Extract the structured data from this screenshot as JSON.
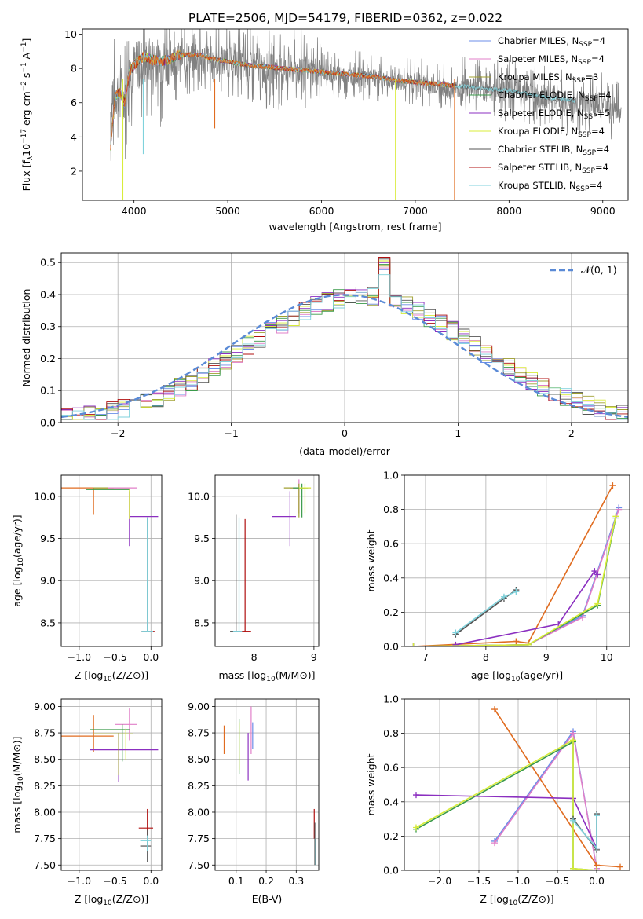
{
  "figure": {
    "title": "PLATE=2506, MJD=54179, FIBERID=0362, z=0.022"
  },
  "colors": {
    "Chabrier MILES": "#6b8ee8",
    "Salpeter MILES": "#e07fc8",
    "Kroupa MILES": "#a0a030",
    "Chabrier ELODIE": "#3a9a4a",
    "Salpeter ELODIE": "#8b2fc0",
    "Kroupa ELODIE": "#d8ec3a",
    "Chabrier STELIB": "#555555",
    "Salpeter STELIB": "#b01010",
    "Kroupa STELIB": "#7fd2dc",
    "orange": "#e06c20",
    "gauss": "#5a8ad6",
    "grid": "#b0b0b0"
  },
  "chart_data": [
    {
      "id": "spectrum",
      "type": "line",
      "title": "PLATE=2506, MJD=54179, FIBERID=0362, z=0.022",
      "xlabel": "wavelength [Angstrom, rest frame]",
      "ylabel": "Flux [fλ10⁻¹⁷ erg cm⁻² s⁻¹ A⁻¹]",
      "xlim": [
        3450,
        9270
      ],
      "ylim": [
        0.3,
        10.3
      ],
      "xticks": [
        4000,
        5000,
        6000,
        7000,
        8000,
        9000
      ],
      "yticks": [
        2,
        4,
        6,
        8,
        10
      ],
      "grid": false,
      "legend_loc": "upper right",
      "legend": [
        {
          "name": "Chabrier MILES",
          "label": "Chabrier MILES, N",
          "sub": "SSP",
          "tail": "=4"
        },
        {
          "name": "Salpeter MILES",
          "label": "Salpeter MILES, N",
          "sub": "SSP",
          "tail": "=4"
        },
        {
          "name": "Kroupa MILES",
          "label": "Kroupa MILES, N",
          "sub": "SSP",
          "tail": "=3"
        },
        {
          "name": "Chabrier ELODIE",
          "label": "Chabrier ELODIE, N",
          "sub": "SSP",
          "tail": "=4"
        },
        {
          "name": "Salpeter ELODIE",
          "label": "Salpeter ELODIE, N",
          "sub": "SSP",
          "tail": "=5"
        },
        {
          "name": "Kroupa ELODIE",
          "label": "Kroupa ELODIE, N",
          "sub": "SSP",
          "tail": "=4"
        },
        {
          "name": "Chabrier STELIB",
          "label": "Chabrier STELIB, N",
          "sub": "SSP",
          "tail": "=4"
        },
        {
          "name": "Salpeter STELIB",
          "label": "Salpeter STELIB, N",
          "sub": "SSP",
          "tail": "=4"
        },
        {
          "name": "Kroupa STELIB",
          "label": "Kroupa STELIB, N",
          "sub": "SSP",
          "tail": "=4"
        }
      ],
      "data_wavelength": [
        3750,
        3800,
        3850,
        3900,
        3950,
        4000,
        4100,
        4200,
        4300,
        4400,
        4500,
        4600,
        4700,
        4800,
        4900,
        5000,
        5200,
        5400,
        5600,
        5800,
        6000,
        6200,
        6400,
        6600,
        6800,
        7000,
        7200,
        7400,
        7600,
        7800,
        8000,
        8200,
        8400,
        8600,
        8800,
        9000,
        9200
      ],
      "data_flux": [
        5.5,
        6.4,
        7.0,
        6.2,
        7.6,
        8.1,
        8.4,
        8.4,
        8.3,
        8.5,
        8.5,
        8.6,
        8.6,
        8.5,
        8.4,
        8.4,
        8.1,
        8.0,
        7.9,
        7.9,
        7.8,
        7.6,
        7.6,
        7.4,
        7.2,
        7.3,
        7.0,
        6.8,
        6.9,
        6.8,
        6.8,
        6.6,
        6.3,
        6.1,
        5.9,
        5.9,
        5.5
      ],
      "data_noise": 1.5,
      "model_flux": [
        3.5,
        6.4,
        6.6,
        6.0,
        7.8,
        8.2,
        8.7,
        8.5,
        8.4,
        8.6,
        8.8,
        8.8,
        8.8,
        8.6,
        8.5,
        8.4,
        8.2,
        8.1,
        8.0,
        7.9,
        7.8,
        7.7,
        7.6,
        7.5,
        7.3,
        7.2,
        7.1,
        7.0,
        6.9,
        6.8,
        6.7,
        6.5,
        6.3,
        6.2,
        6.0,
        5.8,
        5.5
      ],
      "model_x_range": [
        3750,
        7430
      ],
      "dips": [
        {
          "x": 4860,
          "to": 4.5,
          "color": "orange"
        },
        {
          "x": 3880,
          "to": 0.3,
          "color": "Kroupa ELODIE"
        },
        {
          "x": 6790,
          "to": 0.3,
          "color": "Kroupa ELODIE"
        },
        {
          "x": 7420,
          "to": 0.3,
          "color": "orange"
        },
        {
          "x": 4100,
          "to": 3.0,
          "color": "Kroupa STELIB"
        }
      ]
    },
    {
      "id": "residuals",
      "type": "histogram",
      "xlabel": "(data-model)/error",
      "ylabel": "Normed distribution",
      "xlim": [
        -2.5,
        2.5
      ],
      "ylim": [
        0,
        0.53
      ],
      "xticks": [
        -2,
        -1,
        0,
        1,
        2
      ],
      "yticks": [
        0.0,
        0.1,
        0.2,
        0.3,
        0.4,
        0.5
      ],
      "grid": true,
      "legend_loc": "upper right",
      "gauss_label": "N(0,1)",
      "bin_width": 0.1,
      "series_names": [
        "Chabrier MILES",
        "Salpeter MILES",
        "Kroupa MILES",
        "Chabrier ELODIE",
        "Salpeter ELODIE",
        "Kroupa ELODIE",
        "Chabrier STELIB",
        "Salpeter STELIB",
        "Kroupa STELIB"
      ]
    },
    {
      "id": "age-Z",
      "type": "errorbar",
      "xlabel": "Z [log10(Z/Z⊙)]",
      "ylabel": "age  [log10(age/yr)]",
      "xlim": [
        -1.25,
        0.15
      ],
      "ylim": [
        8.22,
        10.25
      ],
      "xticks": [
        -1.0,
        -0.5,
        0.0
      ],
      "yticks": [
        8.5,
        9.0,
        9.5,
        10.0
      ],
      "grid": true,
      "points": [
        {
          "x": -0.8,
          "xerr": [
            0.45,
            0.28
          ],
          "y": 10.1,
          "yerr": [
            0.32,
            0
          ],
          "color": "orange"
        },
        {
          "x": -0.3,
          "xerr": [
            0.5,
            0.0
          ],
          "y": 10.1,
          "yerr": [
            0,
            0
          ],
          "color": "Kroupa MILES"
        },
        {
          "x": -0.3,
          "xerr": [
            0.3,
            0.1
          ],
          "y": 10.1,
          "yerr": [
            0,
            0
          ],
          "color": "Salpeter MILES"
        },
        {
          "x": -0.4,
          "xerr": [
            0.5,
            0.1
          ],
          "y": 10.08,
          "yerr": [
            0,
            0
          ],
          "color": "Chabrier ELODIE"
        },
        {
          "x": -0.3,
          "xerr": [
            0.0,
            0.4
          ],
          "y": 9.76,
          "yerr": [
            0.35,
            0.3
          ],
          "color": "Salpeter ELODIE"
        },
        {
          "x": -0.3,
          "xerr": [
            0.0,
            0.0
          ],
          "y": 10.08,
          "yerr": [
            0.35,
            0
          ],
          "color": "Kroupa ELODIE"
        },
        {
          "x": -0.05,
          "xerr": [
            0.08,
            0.08
          ],
          "y": 8.4,
          "yerr": [
            0,
            1.35
          ],
          "color": "Chabrier STELIB"
        },
        {
          "x": -0.05,
          "xerr": [
            0.08,
            0.1
          ],
          "y": 8.4,
          "yerr": [
            0,
            0
          ],
          "color": "Salpeter STELIB"
        },
        {
          "x": -0.05,
          "xerr": [
            0.08,
            0.08
          ],
          "y": 8.4,
          "yerr": [
            0,
            1.35
          ],
          "color": "Kroupa STELIB"
        }
      ]
    },
    {
      "id": "age-mass",
      "type": "errorbar",
      "xlabel": "mass [log10(M/M⊙)]",
      "ylabel": "",
      "xlim": [
        7.35,
        9.08
      ],
      "ylim": [
        8.22,
        10.25
      ],
      "xticks": [
        8,
        9
      ],
      "yticks": [
        8.5,
        9.0,
        9.5,
        10.0
      ],
      "grid": true,
      "points": [
        {
          "x": 8.75,
          "xerr": [
            0.15,
            0.2
          ],
          "y": 10.1,
          "yerr": [
            0.3,
            0.1
          ],
          "color": "Salpeter MILES"
        },
        {
          "x": 8.75,
          "xerr": [
            0.25,
            0.1
          ],
          "y": 10.1,
          "yerr": [
            0.35,
            0.05
          ],
          "color": "Kroupa MILES"
        },
        {
          "x": 8.6,
          "xerr": [
            0.3,
            0.1
          ],
          "y": 9.76,
          "yerr": [
            0.35,
            0.3
          ],
          "color": "Salpeter ELODIE"
        },
        {
          "x": 8.8,
          "xerr": [
            0.15,
            0.1
          ],
          "y": 10.1,
          "yerr": [
            0.35,
            0.05
          ],
          "color": "Chabrier ELODIE"
        },
        {
          "x": 8.85,
          "xerr": [
            0.1,
            0.1
          ],
          "y": 10.1,
          "yerr": [
            0.3,
            0.05
          ],
          "color": "Kroupa ELODIE"
        },
        {
          "x": 7.7,
          "xerr": [
            0.1,
            0.05
          ],
          "y": 8.4,
          "yerr": [
            0,
            1.38
          ],
          "color": "Chabrier STELIB"
        },
        {
          "x": 7.85,
          "xerr": [
            0.1,
            0.1
          ],
          "y": 8.4,
          "yerr": [
            0,
            1.33
          ],
          "color": "Salpeter STELIB"
        },
        {
          "x": 7.75,
          "xerr": [
            0.1,
            0.05
          ],
          "y": 8.4,
          "yerr": [
            0,
            1.35
          ],
          "color": "Kroupa STELIB"
        }
      ]
    },
    {
      "id": "weight-age",
      "type": "line",
      "xlabel": "age  [log10(age/yr)]",
      "ylabel": "mass weight",
      "xlim": [
        6.65,
        10.38
      ],
      "ylim": [
        0,
        1.0
      ],
      "xticks": [
        7,
        8,
        9,
        10
      ],
      "yticks": [
        0.0,
        0.2,
        0.4,
        0.6,
        0.8,
        1.0
      ],
      "grid": true,
      "series": [
        {
          "color": "Chabrier MILES",
          "x": [
            6.8,
            8.7,
            9.6,
            10.2
          ],
          "y": [
            0.0,
            0.01,
            0.18,
            0.81
          ]
        },
        {
          "color": "Salpeter MILES",
          "x": [
            6.8,
            8.7,
            9.6,
            10.2
          ],
          "y": [
            0.0,
            0.01,
            0.17,
            0.8
          ]
        },
        {
          "color": "orange",
          "x": [
            6.8,
            8.5,
            8.7,
            10.1
          ],
          "y": [
            0.0,
            0.03,
            0.02,
            0.94
          ]
        },
        {
          "color": "Chabrier ELODIE",
          "x": [
            6.8,
            8.7,
            9.85,
            10.15
          ],
          "y": [
            0.0,
            0.01,
            0.24,
            0.75
          ]
        },
        {
          "color": "Salpeter ELODIE",
          "x": [
            7.5,
            9.2,
            9.8,
            9.85
          ],
          "y": [
            0.01,
            0.13,
            0.44,
            0.42
          ]
        },
        {
          "color": "Kroupa ELODIE",
          "x": [
            6.8,
            8.7,
            9.85,
            10.15
          ],
          "y": [
            0.0,
            0.01,
            0.25,
            0.76
          ]
        },
        {
          "color": "Chabrier STELIB",
          "x": [
            7.5,
            8.3,
            8.5
          ],
          "y": [
            0.07,
            0.28,
            0.33
          ]
        },
        {
          "color": "Kroupa STELIB",
          "x": [
            7.5,
            8.3,
            8.5
          ],
          "y": [
            0.08,
            0.29,
            0.32
          ]
        }
      ]
    },
    {
      "id": "mass-Z",
      "type": "errorbar",
      "xlabel": "Z [log10(Z/Z⊙)]",
      "ylabel": "mass [log10(M/M⊙)]",
      "xlim": [
        -1.25,
        0.15
      ],
      "ylim": [
        7.45,
        9.07
      ],
      "xticks": [
        -1.0,
        -0.5,
        0.0
      ],
      "yticks": [
        7.5,
        7.75,
        8.0,
        8.25,
        8.5,
        8.75,
        9.0
      ],
      "grid": true,
      "points": [
        {
          "x": -0.8,
          "xerr": [
            0.45,
            0.28
          ],
          "y": 8.72,
          "yerr": [
            0.15,
            0.2
          ],
          "color": "orange"
        },
        {
          "x": -0.3,
          "xerr": [
            0.2,
            0.1
          ],
          "y": 8.83,
          "yerr": [
            0.15,
            0.15
          ],
          "color": "Salpeter MILES"
        },
        {
          "x": -0.4,
          "xerr": [
            0.45,
            0.1
          ],
          "y": 8.78,
          "yerr": [
            0.3,
            0.05
          ],
          "color": "Chabrier ELODIE"
        },
        {
          "x": -0.35,
          "xerr": [
            0.45,
            0.1
          ],
          "y": 8.74,
          "yerr": [
            0.25,
            0.05
          ],
          "color": "Kroupa ELODIE"
        },
        {
          "x": -0.45,
          "xerr": [
            0.4,
            0.55
          ],
          "y": 8.59,
          "yerr": [
            0.3,
            0.15
          ],
          "color": "Salpeter ELODIE"
        },
        {
          "x": -0.45,
          "xerr": [
            0.0,
            0.0
          ],
          "y": 8.65,
          "yerr": [
            0.3,
            0.1
          ],
          "color": "Kroupa MILES"
        },
        {
          "x": -0.05,
          "xerr": [
            0.12,
            0.08
          ],
          "y": 7.85,
          "yerr": [
            0.1,
            0.18
          ],
          "color": "Salpeter STELIB"
        },
        {
          "x": -0.05,
          "xerr": [
            0.1,
            0.05
          ],
          "y": 7.68,
          "yerr": [
            0.15,
            0.15
          ],
          "color": "Chabrier STELIB"
        },
        {
          "x": -0.05,
          "xerr": [
            0.1,
            0.05
          ],
          "y": 7.73,
          "yerr": [
            0.1,
            0.05
          ],
          "color": "Kroupa STELIB"
        }
      ]
    },
    {
      "id": "mass-EBV",
      "type": "errorbar",
      "xlabel": "E(B-V)",
      "ylabel": "",
      "xlim": [
        0.03,
        0.375
      ],
      "ylim": [
        7.45,
        9.07
      ],
      "xticks": [
        0.1,
        0.2,
        0.3
      ],
      "yticks": [
        7.5,
        7.75,
        8.0,
        8.25,
        8.5,
        8.75,
        9.0
      ],
      "grid": true,
      "points": [
        {
          "x": 0.06,
          "xerr": [
            0,
            0
          ],
          "y": 8.7,
          "yerr": [
            0.15,
            0.12
          ],
          "color": "orange"
        },
        {
          "x": 0.11,
          "xerr": [
            0,
            0
          ],
          "y": 8.63,
          "yerr": [
            0.27,
            0.25
          ],
          "color": "Chabrier ELODIE"
        },
        {
          "x": 0.11,
          "xerr": [
            0,
            0
          ],
          "y": 8.65,
          "yerr": [
            0.25,
            0.2
          ],
          "color": "Kroupa ELODIE"
        },
        {
          "x": 0.14,
          "xerr": [
            0,
            0
          ],
          "y": 8.6,
          "yerr": [
            0.3,
            0.15
          ],
          "color": "Salpeter ELODIE"
        },
        {
          "x": 0.15,
          "xerr": [
            0,
            0
          ],
          "y": 8.75,
          "yerr": [
            0.2,
            0.25
          ],
          "color": "Salpeter MILES"
        },
        {
          "x": 0.155,
          "xerr": [
            0,
            0
          ],
          "y": 8.75,
          "yerr": [
            0.15,
            0.1
          ],
          "color": "Chabrier MILES"
        },
        {
          "x": 0.36,
          "xerr": [
            0,
            0
          ],
          "y": 7.85,
          "yerr": [
            0.1,
            0.18
          ],
          "color": "Salpeter STELIB"
        },
        {
          "x": 0.362,
          "xerr": [
            0,
            0
          ],
          "y": 7.7,
          "yerr": [
            0.2,
            0.2
          ],
          "color": "Chabrier STELIB"
        },
        {
          "x": 0.365,
          "xerr": [
            0,
            0
          ],
          "y": 7.65,
          "yerr": [
            0.15,
            0.1
          ],
          "color": "Kroupa STELIB"
        }
      ]
    },
    {
      "id": "weight-Z",
      "type": "line",
      "xlabel": "Z [log10(Z/Z⊙)]",
      "ylabel": "mass weight",
      "xlim": [
        -2.45,
        0.42
      ],
      "ylim": [
        0,
        1.0
      ],
      "xticks": [
        -2.0,
        -1.5,
        -1.0,
        -0.5,
        0.0
      ],
      "yticks": [
        0.0,
        0.2,
        0.4,
        0.6,
        0.8,
        1.0
      ],
      "grid": true,
      "series": [
        {
          "color": "Chabrier MILES",
          "x": [
            -1.3,
            -0.3,
            0.0
          ],
          "y": [
            0.17,
            0.81,
            0.01
          ]
        },
        {
          "color": "Salpeter MILES",
          "x": [
            -1.3,
            -0.3,
            0.0
          ],
          "y": [
            0.16,
            0.8,
            0.01
          ]
        },
        {
          "color": "orange",
          "x": [
            -1.3,
            0.0,
            0.3
          ],
          "y": [
            0.94,
            0.03,
            0.02
          ]
        },
        {
          "color": "Chabrier ELODIE",
          "x": [
            -2.3,
            -0.3,
            -0.3,
            0.0
          ],
          "y": [
            0.24,
            0.75,
            0.01,
            0.0
          ]
        },
        {
          "color": "Salpeter ELODIE",
          "x": [
            -2.3,
            -0.3,
            0.0
          ],
          "y": [
            0.44,
            0.42,
            0.13
          ]
        },
        {
          "color": "Kroupa ELODIE",
          "x": [
            -2.3,
            -0.3,
            -0.3,
            0.0
          ],
          "y": [
            0.25,
            0.76,
            0.01,
            0.0
          ]
        },
        {
          "color": "Chabrier STELIB",
          "x": [
            -0.3,
            0.0,
            0.0
          ],
          "y": [
            0.3,
            0.12,
            0.33
          ]
        },
        {
          "color": "Kroupa STELIB",
          "x": [
            -0.3,
            0.0,
            0.0
          ],
          "y": [
            0.29,
            0.13,
            0.32
          ]
        }
      ]
    }
  ]
}
